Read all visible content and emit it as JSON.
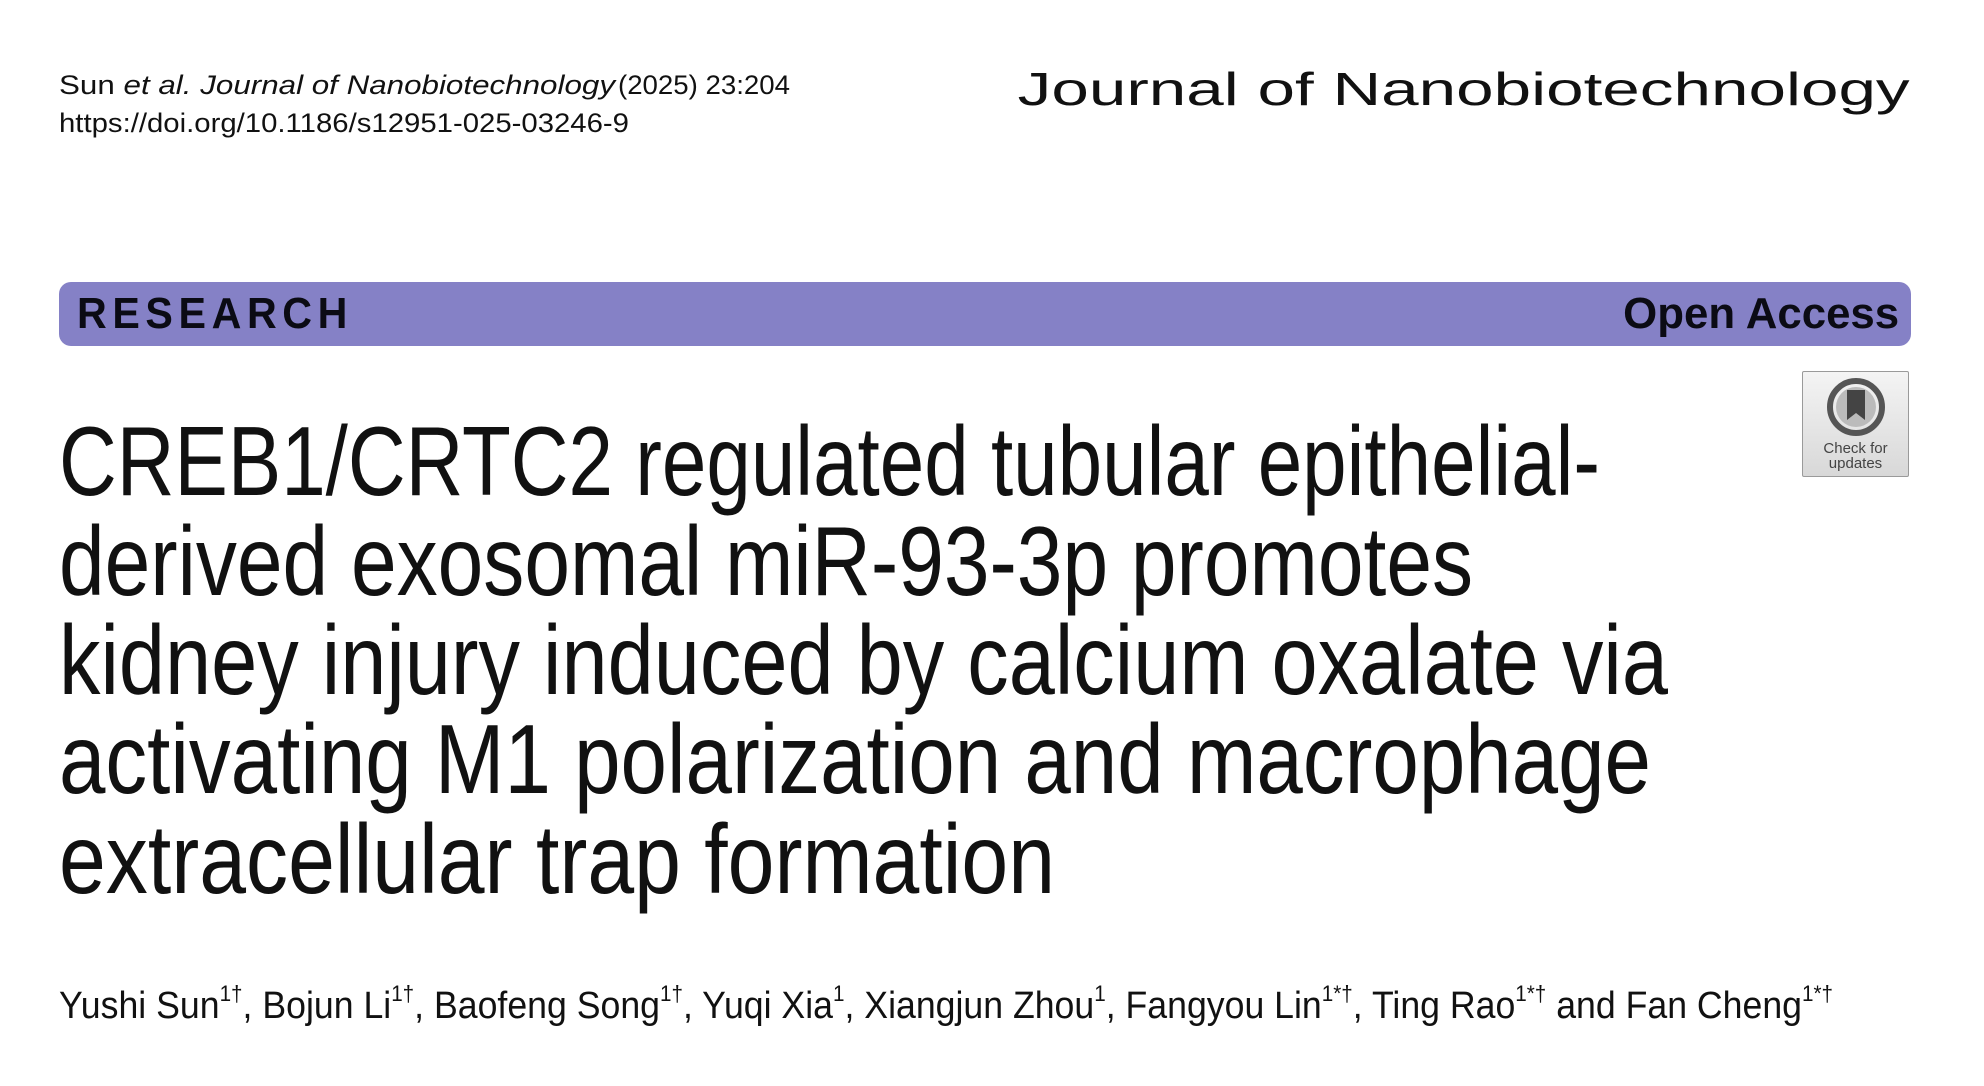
{
  "header": {
    "citation_author": "Sun",
    "citation_etal": "et al.",
    "citation_journal": "Journal of Nanobiotechnology",
    "citation_year_volume": "(2025) 23:204",
    "doi": "https://doi.org/10.1186/s12951-025-03246-9",
    "journal_title": "Journal of Nanobiotechnology"
  },
  "banner": {
    "type_label": "RESEARCH",
    "access_label": "Open Access",
    "color": "#8581c6"
  },
  "badge": {
    "line1": "Check for",
    "line2": "updates",
    "icon": "bookmark-icon"
  },
  "title": {
    "lines": [
      "CREB1/CRTC2 regulated tubular epithelial-",
      "derived exosomal miR-93-3p promotes",
      "kidney injury induced by calcium oxalate via",
      "activating M1 polarization and macrophage",
      "extracellular trap formation"
    ]
  },
  "authors": [
    {
      "name": "Yushi Sun",
      "sup": "1†",
      "sep": ", "
    },
    {
      "name": "Bojun Li",
      "sup": "1†",
      "sep": ", "
    },
    {
      "name": "Baofeng Song",
      "sup": "1†",
      "sep": ", "
    },
    {
      "name": "Yuqi Xia",
      "sup": "1",
      "sep": ", "
    },
    {
      "name": "Xiangjun Zhou",
      "sup": "1",
      "sep": ", "
    },
    {
      "name": "Fangyou Lin",
      "sup": "1*†",
      "sep": ", "
    },
    {
      "name": "Ting Rao",
      "sup": "1*†",
      "sep": " and "
    },
    {
      "name": "Fan Cheng",
      "sup": "1*†",
      "sep": ""
    }
  ]
}
